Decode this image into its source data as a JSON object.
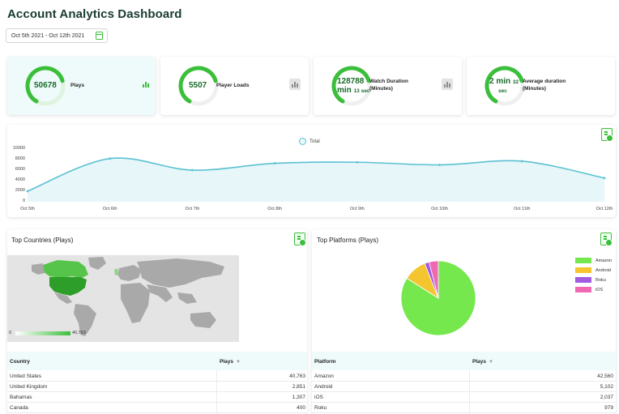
{
  "header": {
    "title": "Account Analytics Dashboard"
  },
  "date_range": {
    "value": "Oct 5th 2021 - Oct 12th 2021",
    "icon": "calendar-icon"
  },
  "kpis": [
    {
      "value": "50678",
      "label": "Plays",
      "progress": 0.62
    },
    {
      "value": "5507",
      "label": "Player Loads",
      "progress": 0.62
    },
    {
      "value_main": "128788",
      "value_unit": "min",
      "value_sub": "13 sec",
      "label": "Watch Duration (Minutes)",
      "progress": 0.62
    },
    {
      "value_main": "2 min",
      "value_sub_num": "32",
      "value_sub_unit": "sec",
      "label": "Average duration (Minutes)",
      "progress": 0.62
    }
  ],
  "colors": {
    "accent": "#3bbf3b",
    "line": "#5bc1d2",
    "area": "#e6f6f9",
    "amazon": "#74e84d",
    "android": "#f5c530",
    "roku": "#a35be0",
    "ios": "#f068b2"
  },
  "chart_data": [
    {
      "type": "area",
      "series": [
        {
          "name": "Total",
          "values": [
            2000,
            8200,
            6000,
            7300,
            7500,
            7000,
            7700,
            4500
          ]
        }
      ],
      "x": [
        "Oct 5th",
        "Oct 6th",
        "Oct 7th",
        "Oct 8th",
        "Oct 9th",
        "Oct 10th",
        "Oct 11th",
        "Oct 12th"
      ],
      "yticks": [
        "10000",
        "8000",
        "6000",
        "4000",
        "2000",
        "0"
      ],
      "ylim": [
        0,
        10000
      ],
      "legend": "top-center",
      "grid": false
    },
    {
      "type": "pie",
      "categories": [
        "Amazon",
        "Android",
        "Roku",
        "iOS"
      ],
      "values": [
        42560,
        5102,
        979,
        2037
      ],
      "legend": "right"
    }
  ],
  "countries": {
    "title": "Top Countries (Plays)",
    "legend_min": "0",
    "legend_max": "40,763",
    "headers": [
      "Country",
      "Plays"
    ],
    "rows": [
      [
        "United States",
        "40,763"
      ],
      [
        "United Kingdom",
        "2,851"
      ],
      [
        "Bahamas",
        "1,307"
      ],
      [
        "Canada",
        "400"
      ]
    ]
  },
  "platforms": {
    "title": "Top Platforms (Plays)",
    "legend": [
      "Amazon",
      "Android",
      "Roku",
      "iOS"
    ],
    "headers": [
      "Platform",
      "Plays"
    ],
    "rows": [
      [
        "Amazon",
        "42,560"
      ],
      [
        "Android",
        "5,102"
      ],
      [
        "iOS",
        "2,037"
      ],
      [
        "Roku",
        "979"
      ]
    ]
  }
}
